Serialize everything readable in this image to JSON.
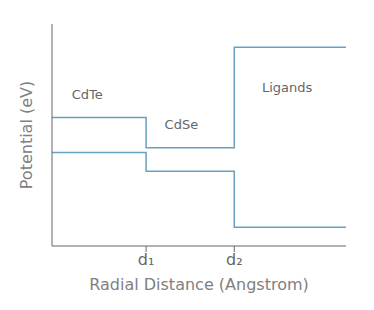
{
  "chart_data": {
    "type": "line",
    "xlabel": "Radial Distance (Angstrom)",
    "ylabel": "Potential (eV)",
    "series": [
      {
        "color": "#6a9fc0",
        "x": [
          0.0,
          0.32,
          0.32,
          0.62,
          0.62,
          1.0
        ],
        "values": [
          5.5,
          5.5,
          4.2,
          4.2,
          8.5,
          8.5
        ]
      },
      {
        "color": "#6a9fc0",
        "x": [
          0.0,
          0.32,
          0.32,
          0.62,
          0.62,
          1.0
        ],
        "values": [
          4.0,
          4.0,
          3.2,
          3.2,
          0.8,
          0.8
        ]
      }
    ],
    "annotations": [
      {
        "text": "CdTe",
        "x": 0.12,
        "y": 6.5
      },
      {
        "text": "CdSe",
        "x": 0.44,
        "y": 5.2
      },
      {
        "text": "Ligands",
        "x": 0.8,
        "y": 6.8
      }
    ],
    "xlim": [
      0.0,
      1.0
    ],
    "ylim": [
      0.0,
      9.5
    ],
    "xticks": [
      {
        "value": 0.32,
        "label": "d₁"
      },
      {
        "value": 0.62,
        "label": "d₂"
      }
    ],
    "yticks": [],
    "tick_labels": "x",
    "grid": false
  }
}
